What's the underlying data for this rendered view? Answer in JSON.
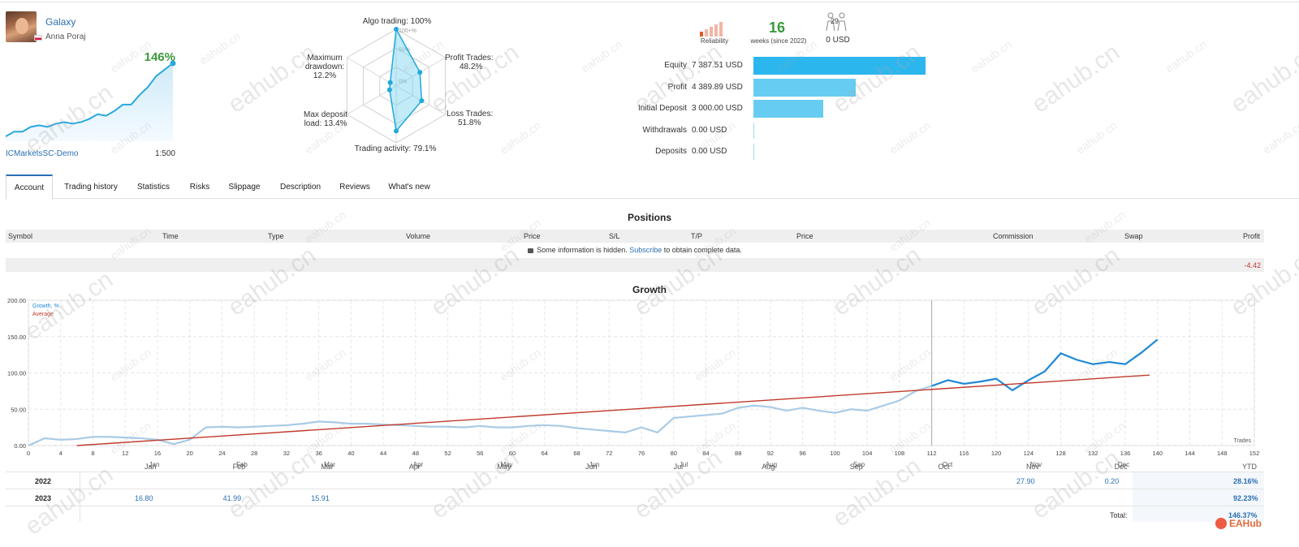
{
  "signal": {
    "name": "Galaxy",
    "author": "Anna Poraj",
    "growth": "146%",
    "broker": "ICMarketsSC-Demo",
    "leverage": "1:500",
    "mini_chart": [
      2,
      5,
      5,
      8,
      9,
      8,
      10,
      11,
      10,
      11,
      13,
      16,
      15,
      18,
      22,
      22,
      28,
      33,
      40,
      44,
      48
    ]
  },
  "radar": {
    "algo_trading": "Algo trading: 100%",
    "profit_trades_title": "Profit Trades:",
    "profit_trades_value": "48.2%",
    "loss_trades_title": "Loss Trades:",
    "loss_trades_value": "51.8%",
    "trading_activity": "Trading activity: 79.1%",
    "max_deposit_title": "Max deposit",
    "max_deposit_value": "load: 13.4%",
    "max_drawdown_title": "Maximum",
    "max_drawdown_sub": "drawdown:",
    "max_drawdown_value": "12.2%",
    "scale": [
      "100+%",
      "50%",
      "0%"
    ],
    "values": [
      100,
      48.2,
      51.8,
      79.1,
      13.4,
      12.2
    ]
  },
  "stats": {
    "reliability_label": "Reliability",
    "reliability_level": 1,
    "weeks": "16",
    "weeks_label": "weeks (since 2022)",
    "subscribers": "29",
    "subscribers_usd": "0 USD",
    "bars": [
      {
        "label": "Equity",
        "value": "7 387.51 USD",
        "amount": 7387.51
      },
      {
        "label": "Profit",
        "value": "4 389.89 USD",
        "amount": 4389.89
      },
      {
        "label": "Initial Deposit",
        "value": "3 000.00 USD",
        "amount": 3000
      },
      {
        "label": "Withdrawals",
        "value": "0.00 USD",
        "amount": 0
      },
      {
        "label": "Deposits",
        "value": "0.00 USD",
        "amount": 0
      }
    ]
  },
  "tabs": [
    "Account",
    "Trading history",
    "Statistics",
    "Risks",
    "Slippage",
    "Description",
    "Reviews",
    "What's new"
  ],
  "positions": {
    "title": "Positions",
    "columns": [
      "Symbol",
      "Time",
      "Type",
      "Volume",
      "Price",
      "S/L",
      "T/P",
      "Price",
      "Commission",
      "Swap",
      "Profit"
    ],
    "info_text": "Some information is hidden.",
    "subscribe_link": "Subscribe",
    "info_suffix": "to obtain complete data.",
    "total_profit": "-4.42"
  },
  "growth": {
    "title": "Growth",
    "legend_growth": "Growth, %",
    "legend_average": "Average",
    "trades_label": "Trades",
    "growth_color": "#1e88d6",
    "average_color": "#c0392b",
    "y_ticks": [
      "200.00",
      "150.00",
      "100.00",
      "50.00",
      "0.00"
    ],
    "x_ticks": [
      "0",
      "4",
      "8",
      "12",
      "16",
      "20",
      "24",
      "28",
      "32",
      "36",
      "40",
      "44",
      "48",
      "52",
      "56",
      "60",
      "64",
      "68",
      "72",
      "76",
      "80",
      "84",
      "88",
      "92",
      "96",
      "100",
      "104",
      "108",
      "112",
      "116",
      "120",
      "124",
      "128",
      "132",
      "136",
      "140",
      "144",
      "148",
      "152"
    ],
    "months": [
      "Jan",
      "Feb",
      "Mar",
      "Apr",
      "May",
      "Jun",
      "Jul",
      "Aug",
      "Sep",
      "Oct",
      "Nov",
      "Dec"
    ],
    "chart_data": {
      "type": "line",
      "xlabel": "Trades",
      "ylim": [
        0,
        200
      ],
      "xlim": [
        0,
        152
      ],
      "series": [
        {
          "name": "Growth, %",
          "x": [
            0,
            2,
            4,
            6,
            8,
            10,
            12,
            14,
            16,
            18,
            20,
            22,
            24,
            26,
            28,
            30,
            32,
            34,
            36,
            38,
            40,
            42,
            44,
            46,
            48,
            50,
            52,
            54,
            56,
            58,
            60,
            62,
            64,
            66,
            68,
            70,
            72,
            74,
            76,
            78,
            80,
            82,
            84,
            86,
            88,
            90,
            92,
            94,
            96,
            98,
            100,
            102,
            104,
            106,
            108,
            110,
            112,
            114,
            116,
            118,
            120,
            122,
            124,
            126,
            128,
            130,
            132,
            134,
            136,
            138,
            140
          ],
          "y": [
            0,
            10,
            8,
            9,
            12,
            12,
            11,
            10,
            8,
            2,
            8,
            25,
            26,
            25,
            26,
            27,
            28,
            30,
            33,
            32,
            30,
            30,
            29,
            28,
            27,
            26,
            26,
            25,
            27,
            25,
            25,
            27,
            28,
            27,
            24,
            22,
            20,
            18,
            25,
            18,
            38,
            40,
            42,
            44,
            52,
            55,
            53,
            48,
            52,
            48,
            45,
            50,
            48,
            55,
            62,
            75,
            82,
            90,
            85,
            88,
            92,
            76,
            90,
            102,
            127,
            118,
            112,
            115,
            112,
            128,
            146
          ]
        },
        {
          "name": "Average",
          "x": [
            6,
            139
          ],
          "y": [
            0,
            97
          ]
        }
      ]
    }
  },
  "monthly": {
    "rows": [
      {
        "year": "2022",
        "values": {
          "Nov": "27.90",
          "Dec": "0.20"
        },
        "ytd": "28.16%"
      },
      {
        "year": "2023",
        "values": {
          "Jan": "16.80",
          "Feb": "41.99",
          "Mar": "15.91"
        },
        "ytd": "92.23%"
      }
    ],
    "ytd_label": "YTD",
    "total_label": "Total:",
    "total_value": "146.37%"
  },
  "watermark_text": "eahub.cn",
  "brand": "EAHub"
}
